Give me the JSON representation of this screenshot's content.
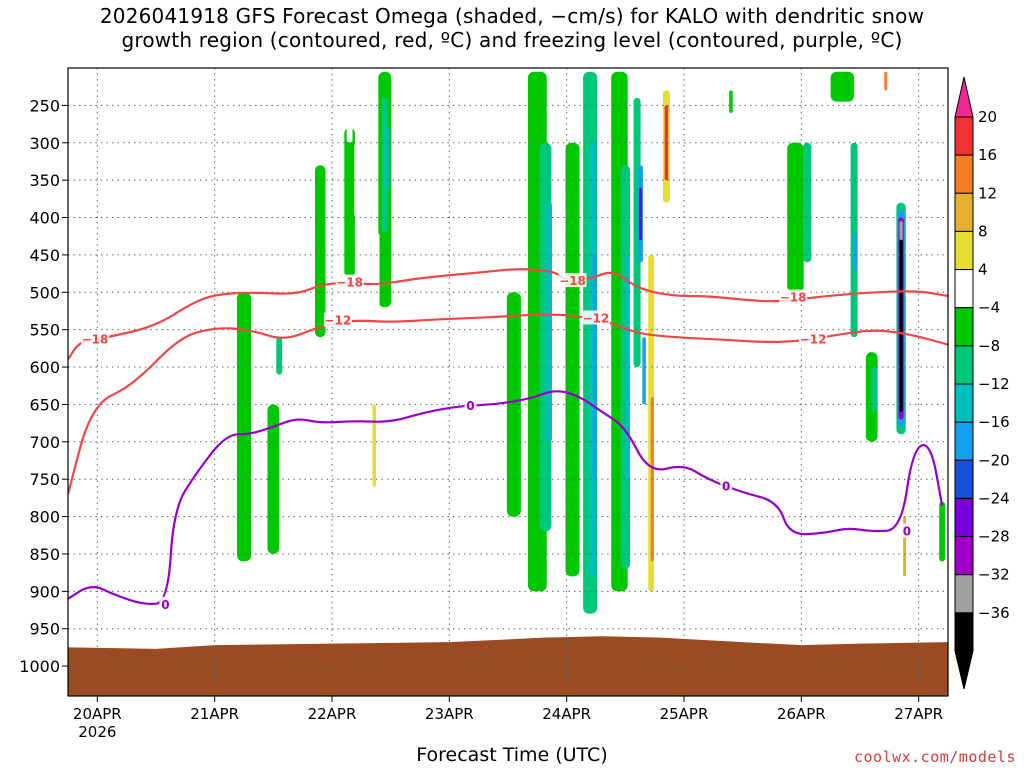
{
  "title": {
    "line1": "2026041918 GFS Forecast Omega (shaded, −cm/s) for KALO with dendritic snow",
    "line2": "growth region (contoured, red, ºC) and freezing level (contoured, purple, ºC)"
  },
  "xlabel": "Forecast Time (UTC)",
  "credit": "coolwx.com/models",
  "colors": {
    "red_contour": "#f04646",
    "purple_contour": "#9600c8",
    "ground": "#9b4b22",
    "grid": "#666666"
  },
  "chart_data": {
    "type": "heatmap",
    "title": "2026041918 GFS Forecast Omega (shaded, −cm/s) for KALO with dendritic snow growth region (contoured, red, ºC) and freezing level (contoured, purple, ºC)",
    "xlabel": "Forecast Time (UTC)",
    "ylabel": "",
    "x_ticks": [
      "20APR",
      "21APR",
      "22APR",
      "23APR",
      "24APR",
      "25APR",
      "26APR",
      "27APR"
    ],
    "x_sublabel": "2026",
    "x_range_days": [
      19.75,
      27.25
    ],
    "y_ticks": [
      "250",
      "300",
      "350",
      "400",
      "450",
      "500",
      "550",
      "600",
      "650",
      "700",
      "750",
      "800",
      "850",
      "900",
      "950",
      "1000"
    ],
    "y_range_hpa": [
      200,
      1040
    ],
    "grid": true,
    "colorbar": {
      "labels": [
        "20",
        "16",
        "12",
        "8",
        "4",
        "−4",
        "−8",
        "−12",
        "−16",
        "−20",
        "−24",
        "−28",
        "−32",
        "−36"
      ],
      "colors": [
        "#f03232",
        "#f57d28",
        "#e6af2d",
        "#e6dc32",
        "#ffffff",
        "#00c800",
        "#00c878",
        "#00bebe",
        "#14a0f0",
        "#1450dc",
        "#7800dc",
        "#a000c8",
        "#a0a0a0",
        "#000000"
      ],
      "top_arrow_color": "#f02896",
      "bottom_arrow_color": "#000000"
    },
    "contours": [
      {
        "name": "-18C",
        "label": "−18",
        "color": "#f04646",
        "points": [
          [
            19.75,
            590
          ],
          [
            19.85,
            565
          ],
          [
            20.1,
            560
          ],
          [
            20.5,
            545
          ],
          [
            20.8,
            515
          ],
          [
            21.0,
            503
          ],
          [
            21.3,
            500
          ],
          [
            21.7,
            503
          ],
          [
            21.9,
            490
          ],
          [
            22.1,
            487
          ],
          [
            22.4,
            490
          ],
          [
            22.7,
            482
          ],
          [
            23.0,
            477
          ],
          [
            23.3,
            473
          ],
          [
            23.6,
            468
          ],
          [
            23.9,
            472
          ],
          [
            24.0,
            485
          ],
          [
            24.2,
            482
          ],
          [
            24.4,
            470
          ],
          [
            24.6,
            495
          ],
          [
            24.9,
            505
          ],
          [
            25.2,
            505
          ],
          [
            25.5,
            510
          ],
          [
            25.8,
            513
          ],
          [
            26.2,
            505
          ],
          [
            26.6,
            500
          ],
          [
            27.0,
            498
          ],
          [
            27.25,
            505
          ]
        ]
      },
      {
        "name": "-12C",
        "label": "−12",
        "color": "#f04646",
        "points": [
          [
            19.75,
            770
          ],
          [
            19.95,
            650
          ],
          [
            20.3,
            625
          ],
          [
            20.7,
            560
          ],
          [
            21.0,
            547
          ],
          [
            21.3,
            550
          ],
          [
            21.6,
            565
          ],
          [
            21.9,
            545
          ],
          [
            22.2,
            537
          ],
          [
            22.5,
            540
          ],
          [
            22.8,
            537
          ],
          [
            23.1,
            535
          ],
          [
            23.4,
            533
          ],
          [
            23.7,
            530
          ],
          [
            24.0,
            530
          ],
          [
            24.2,
            535
          ],
          [
            24.4,
            542
          ],
          [
            24.6,
            555
          ],
          [
            24.9,
            560
          ],
          [
            25.3,
            563
          ],
          [
            25.7,
            567
          ],
          [
            26.0,
            565
          ],
          [
            26.3,
            557
          ],
          [
            26.6,
            550
          ],
          [
            26.9,
            555
          ],
          [
            27.25,
            570
          ]
        ]
      },
      {
        "name": "0C",
        "label": "0",
        "color": "#9600c8",
        "points": [
          [
            19.75,
            910
          ],
          [
            19.95,
            890
          ],
          [
            20.15,
            905
          ],
          [
            20.4,
            918
          ],
          [
            20.6,
            915
          ],
          [
            20.65,
            790
          ],
          [
            20.85,
            740
          ],
          [
            21.1,
            690
          ],
          [
            21.3,
            690
          ],
          [
            21.5,
            680
          ],
          [
            21.7,
            668
          ],
          [
            21.9,
            675
          ],
          [
            22.2,
            672
          ],
          [
            22.5,
            674
          ],
          [
            22.8,
            660
          ],
          [
            23.1,
            652
          ],
          [
            23.4,
            650
          ],
          [
            23.7,
            642
          ],
          [
            23.9,
            630
          ],
          [
            24.1,
            638
          ],
          [
            24.3,
            660
          ],
          [
            24.5,
            680
          ],
          [
            24.7,
            742
          ],
          [
            25.0,
            730
          ],
          [
            25.2,
            750
          ],
          [
            25.5,
            768
          ],
          [
            25.8,
            780
          ],
          [
            25.9,
            825
          ],
          [
            26.2,
            822
          ],
          [
            26.4,
            815
          ],
          [
            26.6,
            820
          ],
          [
            26.85,
            818
          ],
          [
            26.95,
            710
          ],
          [
            27.1,
            700
          ],
          [
            27.2,
            785
          ]
        ]
      }
    ],
    "contour_labels": [
      {
        "text": "−18",
        "x_day": 19.98,
        "p": 563,
        "color": "#f04646"
      },
      {
        "text": "−18",
        "x_day": 22.15,
        "p": 487,
        "color": "#f04646"
      },
      {
        "text": "−18",
        "x_day": 24.05,
        "p": 485,
        "color": "#f04646"
      },
      {
        "text": "−18",
        "x_day": 25.93,
        "p": 507,
        "color": "#f04646"
      },
      {
        "text": "−12",
        "x_day": 22.05,
        "p": 538,
        "color": "#f04646"
      },
      {
        "text": "−12",
        "x_day": 24.25,
        "p": 535,
        "color": "#f04646"
      },
      {
        "text": "−12",
        "x_day": 26.1,
        "p": 563,
        "color": "#f04646"
      },
      {
        "text": "0",
        "x_day": 20.58,
        "p": 918,
        "color": "#9600c8"
      },
      {
        "text": "0",
        "x_day": 23.18,
        "p": 652,
        "color": "#9600c8"
      },
      {
        "text": "0",
        "x_day": 25.36,
        "p": 760,
        "color": "#9600c8"
      },
      {
        "text": "0",
        "x_day": 26.9,
        "p": 820,
        "color": "#9600c8"
      }
    ],
    "omega_regions": [
      {
        "x_day": 19.96,
        "p_top": 250,
        "p_bot": 330,
        "w": 0.08,
        "level": "4"
      },
      {
        "x_day": 20.3,
        "p_top": 240,
        "p_bot": 300,
        "w": 0.06,
        "level": "4"
      },
      {
        "x_day": 20.1,
        "p_top": 780,
        "p_bot": 815,
        "w": 0.05,
        "level": "4"
      },
      {
        "x_day": 20.6,
        "p_top": 330,
        "p_bot": 420,
        "w": 0.05,
        "level": "4"
      },
      {
        "x_day": 21.25,
        "p_top": 500,
        "p_bot": 860,
        "w": 0.12,
        "level": "-4"
      },
      {
        "x_day": 21.5,
        "p_top": 650,
        "p_bot": 850,
        "w": 0.1,
        "level": "-4"
      },
      {
        "x_day": 21.55,
        "p_top": 560,
        "p_bot": 610,
        "w": 0.05,
        "level": "-8"
      },
      {
        "x_day": 21.9,
        "p_top": 330,
        "p_bot": 560,
        "w": 0.09,
        "level": "-4"
      },
      {
        "x_day": 22.15,
        "p_top": 280,
        "p_bot": 480,
        "w": 0.09,
        "level": "-4"
      },
      {
        "x_day": 22.15,
        "p_top": 220,
        "p_bot": 300,
        "w": 0.05,
        "level": "4"
      },
      {
        "x_day": 22.22,
        "p_top": 300,
        "p_bot": 400,
        "w": 0.06,
        "level": "4"
      },
      {
        "x_day": 22.45,
        "p_top": 205,
        "p_bot": 520,
        "w": 0.11,
        "level": "-4"
      },
      {
        "x_day": 22.45,
        "p_top": 240,
        "p_bot": 420,
        "w": 0.06,
        "level": "-8"
      },
      {
        "x_day": 22.47,
        "p_top": 280,
        "p_bot": 360,
        "w": 0.03,
        "level": "-12"
      },
      {
        "x_day": 22.38,
        "p_top": 420,
        "p_bot": 520,
        "w": 0.05,
        "level": "4"
      },
      {
        "x_day": 22.35,
        "p_top": 620,
        "p_bot": 800,
        "w": 0.06,
        "level": "4"
      },
      {
        "x_day": 22.36,
        "p_top": 650,
        "p_bot": 760,
        "w": 0.03,
        "level": "8"
      },
      {
        "x_day": 22.05,
        "p_top": 880,
        "p_bot": 930,
        "w": 0.05,
        "level": "4"
      },
      {
        "x_day": 22.6,
        "p_top": 300,
        "p_bot": 380,
        "w": 0.05,
        "level": "4"
      },
      {
        "x_day": 23.55,
        "p_top": 500,
        "p_bot": 800,
        "w": 0.12,
        "level": "-4"
      },
      {
        "x_day": 23.75,
        "p_top": 205,
        "p_bot": 900,
        "w": 0.16,
        "level": "-4"
      },
      {
        "x_day": 23.82,
        "p_top": 300,
        "p_bot": 820,
        "w": 0.1,
        "level": "-8"
      },
      {
        "x_day": 23.85,
        "p_top": 380,
        "p_bot": 700,
        "w": 0.05,
        "level": "-12"
      },
      {
        "x_day": 24.05,
        "p_top": 300,
        "p_bot": 880,
        "w": 0.12,
        "level": "-4"
      },
      {
        "x_day": 24.2,
        "p_top": 205,
        "p_bot": 930,
        "w": 0.12,
        "level": "-8"
      },
      {
        "x_day": 24.22,
        "p_top": 300,
        "p_bot": 880,
        "w": 0.06,
        "level": "-12"
      },
      {
        "x_day": 24.24,
        "p_top": 450,
        "p_bot": 750,
        "w": 0.03,
        "level": "-16"
      },
      {
        "x_day": 24.45,
        "p_top": 205,
        "p_bot": 900,
        "w": 0.14,
        "level": "-4"
      },
      {
        "x_day": 24.5,
        "p_top": 330,
        "p_bot": 870,
        "w": 0.08,
        "level": "-8"
      },
      {
        "x_day": 24.52,
        "p_top": 450,
        "p_bot": 750,
        "w": 0.04,
        "level": "-12"
      },
      {
        "x_day": 24.6,
        "p_top": 240,
        "p_bot": 600,
        "w": 0.06,
        "level": "-8"
      },
      {
        "x_day": 24.63,
        "p_top": 330,
        "p_bot": 460,
        "w": 0.04,
        "level": "-16"
      },
      {
        "x_day": 24.63,
        "p_top": 360,
        "p_bot": 430,
        "w": 0.025,
        "level": "-24"
      },
      {
        "x_day": 24.66,
        "p_top": 560,
        "p_bot": 650,
        "w": 0.03,
        "level": "-16"
      },
      {
        "x_day": 24.72,
        "p_top": 450,
        "p_bot": 900,
        "w": 0.05,
        "level": "8"
      },
      {
        "x_day": 24.73,
        "p_top": 640,
        "p_bot": 860,
        "w": 0.025,
        "level": "16"
      },
      {
        "x_day": 24.7,
        "p_top": 320,
        "p_bot": 420,
        "w": 0.03,
        "level": "4"
      },
      {
        "x_day": 24.85,
        "p_top": 230,
        "p_bot": 380,
        "w": 0.06,
        "level": "8"
      },
      {
        "x_day": 24.85,
        "p_top": 250,
        "p_bot": 350,
        "w": 0.03,
        "level": "20"
      },
      {
        "x_day": 24.95,
        "p_top": 600,
        "p_bot": 780,
        "w": 0.08,
        "level": "4"
      },
      {
        "x_day": 25.08,
        "p_top": 550,
        "p_bot": 650,
        "w": 0.06,
        "level": "4"
      },
      {
        "x_day": 25.15,
        "p_top": 300,
        "p_bot": 350,
        "w": 0.05,
        "level": "4"
      },
      {
        "x_day": 25.4,
        "p_top": 230,
        "p_bot": 260,
        "w": 0.03,
        "level": "-4"
      },
      {
        "x_day": 25.95,
        "p_top": 300,
        "p_bot": 500,
        "w": 0.14,
        "level": "-4"
      },
      {
        "x_day": 26.05,
        "p_top": 300,
        "p_bot": 460,
        "w": 0.07,
        "level": "-8"
      },
      {
        "x_day": 25.75,
        "p_top": 480,
        "p_bot": 520,
        "w": 0.05,
        "level": "4"
      },
      {
        "x_day": 26.35,
        "p_top": 205,
        "p_bot": 245,
        "w": 0.2,
        "level": "-4"
      },
      {
        "x_day": 26.45,
        "p_top": 300,
        "p_bot": 560,
        "w": 0.06,
        "level": "-8"
      },
      {
        "x_day": 26.46,
        "p_top": 420,
        "p_bot": 470,
        "w": 0.03,
        "level": "-16"
      },
      {
        "x_day": 26.6,
        "p_top": 580,
        "p_bot": 700,
        "w": 0.1,
        "level": "-4"
      },
      {
        "x_day": 26.62,
        "p_top": 600,
        "p_bot": 660,
        "w": 0.05,
        "level": "-8"
      },
      {
        "x_day": 26.72,
        "p_top": 200,
        "p_bot": 240,
        "w": 0.06,
        "level": "4"
      },
      {
        "x_day": 26.72,
        "p_top": 205,
        "p_bot": 230,
        "w": 0.025,
        "level": "16"
      },
      {
        "x_day": 26.72,
        "p_top": 250,
        "p_bot": 330,
        "w": 0.1,
        "level": "4"
      },
      {
        "x_day": 26.85,
        "p_top": 380,
        "p_bot": 690,
        "w": 0.08,
        "level": "-8"
      },
      {
        "x_day": 26.85,
        "p_top": 390,
        "p_bot": 680,
        "w": 0.06,
        "level": "-16"
      },
      {
        "x_day": 26.85,
        "p_top": 400,
        "p_bot": 670,
        "w": 0.045,
        "level": "-28"
      },
      {
        "x_day": 26.85,
        "p_top": 430,
        "p_bot": 660,
        "w": 0.028,
        "level": "-36"
      },
      {
        "x_day": 26.85,
        "p_top": 405,
        "p_bot": 430,
        "w": 0.028,
        "level": "-32"
      },
      {
        "x_day": 26.72,
        "p_top": 420,
        "p_bot": 520,
        "w": 0.04,
        "level": "4"
      },
      {
        "x_day": 26.88,
        "p_top": 780,
        "p_bot": 920,
        "w": 0.05,
        "level": "4"
      },
      {
        "x_day": 26.88,
        "p_top": 800,
        "p_bot": 880,
        "w": 0.025,
        "level": "12"
      },
      {
        "x_day": 27.2,
        "p_top": 780,
        "p_bot": 860,
        "w": 0.05,
        "level": "-4"
      }
    ]
  }
}
